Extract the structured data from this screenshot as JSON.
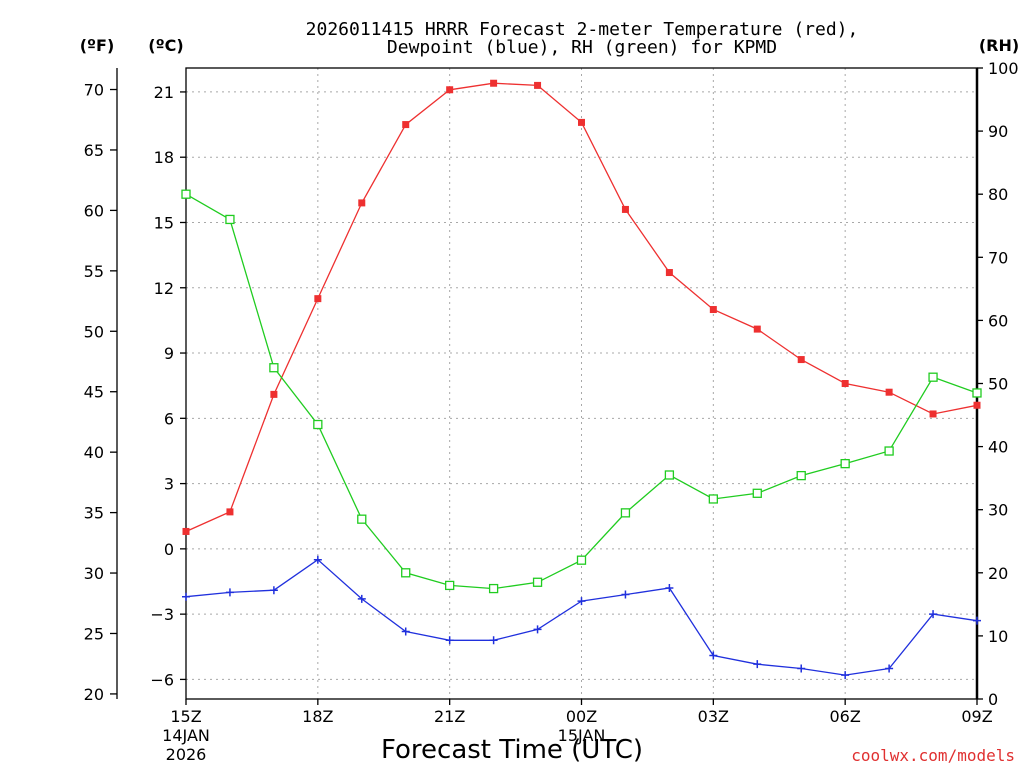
{
  "chart_data": {
    "type": "line",
    "title_line1": "2026011415 HRRR Forecast 2-meter Temperature (red),",
    "title_line2": "Dewpoint (blue), RH (green) for KPMD",
    "unit_f": "(ºF)",
    "unit_c": "(ºC)",
    "unit_rh": "(RH)",
    "xlabel": "Forecast Time (UTC)",
    "credit": "coolwx.com/models",
    "x_ticks": [
      {
        "h": 0,
        "label": "15Z",
        "sub1": "14JAN",
        "sub2": "2026"
      },
      {
        "h": 3,
        "label": "18Z"
      },
      {
        "h": 6,
        "label": "21Z"
      },
      {
        "h": 9,
        "label": "00Z",
        "sub1": "15JAN"
      },
      {
        "h": 12,
        "label": "03Z"
      },
      {
        "h": 15,
        "label": "06Z"
      },
      {
        "h": 18,
        "label": "09Z"
      }
    ],
    "xlim": [
      0,
      18
    ],
    "c_ylim": [
      -6.9,
      22.1
    ],
    "c_ticks": [
      -6,
      -3,
      0,
      3,
      6,
      9,
      12,
      15,
      18,
      21
    ],
    "f_ticks": [
      20,
      25,
      30,
      35,
      40,
      45,
      50,
      55,
      60,
      65,
      70
    ],
    "rh_ylim": [
      0,
      100
    ],
    "rh_ticks": [
      0,
      10,
      20,
      30,
      40,
      50,
      60,
      70,
      80,
      90,
      100
    ],
    "x": [
      0,
      1,
      2,
      3,
      4,
      5,
      6,
      7,
      8,
      9,
      10,
      11,
      12,
      13,
      14,
      15,
      16,
      17,
      18
    ],
    "series": [
      {
        "name": "Temperature",
        "axis": "c",
        "color": "#ee3030",
        "marker": "filled-square",
        "values": [
          0.8,
          1.7,
          7.1,
          11.5,
          15.9,
          19.5,
          21.1,
          21.4,
          21.3,
          19.6,
          15.6,
          12.7,
          11.0,
          10.1,
          8.7,
          7.6,
          7.2,
          6.2,
          6.6
        ]
      },
      {
        "name": "Dewpoint",
        "axis": "c",
        "color": "#2030dd",
        "marker": "plus",
        "values": [
          -2.2,
          -2.0,
          -1.9,
          -0.5,
          -2.3,
          -3.8,
          -4.2,
          -4.2,
          -3.7,
          -2.4,
          -2.1,
          -1.8,
          -4.9,
          -5.3,
          -5.5,
          -5.8,
          -5.5,
          -3.0,
          -3.3
        ]
      },
      {
        "name": "RH",
        "axis": "rh",
        "color": "#20cc20",
        "marker": "open-square",
        "values": [
          80,
          76,
          52.5,
          43.5,
          28.5,
          20,
          18,
          17.5,
          18.5,
          22,
          29.5,
          35.5,
          31.7,
          32.6,
          35.4,
          37.3,
          39.3,
          51,
          48.5
        ]
      }
    ]
  }
}
